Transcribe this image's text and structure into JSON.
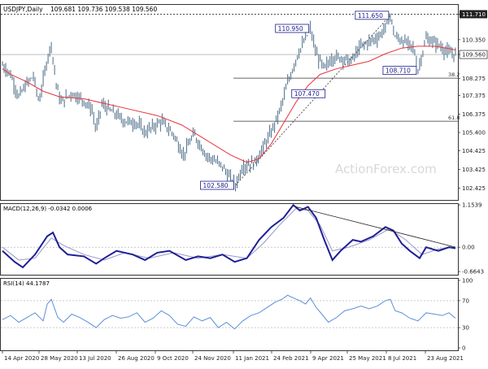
{
  "chart_data": [
    {
      "type": "candlestick",
      "panel": "price",
      "title": "USDJPY,Daily",
      "ohlc_label": "109.681 109.736 109.538 109.560",
      "ylim": [
        101.8,
        112.25
      ],
      "y_ticks": [
        "111.710",
        "110.350",
        "109.560",
        "108.275",
        "107.375",
        "106.375",
        "105.400",
        "104.425",
        "103.425",
        "102.425"
      ],
      "current_price": "109.560",
      "last_value_box_color": "#ffffff",
      "bar_color": "#4a6b86",
      "moving_average_color": "#e8323c",
      "series": [
        {
          "name": "price",
          "points": [
            [
              0,
              109.0
            ],
            [
              10,
              108.5
            ],
            [
              20,
              107.3
            ],
            [
              30,
              108.0
            ],
            [
              38,
              108.4
            ],
            [
              45,
              107.0
            ],
            [
              55,
              109.3
            ],
            [
              60,
              110.1
            ],
            [
              66,
              108.0
            ],
            [
              72,
              107.0
            ],
            [
              85,
              107.5
            ],
            [
              100,
              107.1
            ],
            [
              110,
              106.6
            ],
            [
              115,
              105.5
            ],
            [
              122,
              106.9
            ],
            [
              135,
              106.5
            ],
            [
              150,
              106.0
            ],
            [
              165,
              105.9
            ],
            [
              175,
              105.4
            ],
            [
              195,
              106.0
            ],
            [
              210,
              105.3
            ],
            [
              222,
              104.2
            ],
            [
              235,
              105.3
            ],
            [
              250,
              104.2
            ],
            [
              270,
              103.6
            ],
            [
              280,
              102.9
            ],
            [
              286,
              102.58
            ],
            [
              295,
              103.6
            ],
            [
              310,
              103.8
            ],
            [
              330,
              105.4
            ],
            [
              340,
              106.5
            ],
            [
              350,
              108.0
            ],
            [
              362,
              109.5
            ],
            [
              372,
              110.4
            ],
            [
              378,
              110.95
            ],
            [
              385,
              109.6
            ],
            [
              395,
              108.8
            ],
            [
              405,
              109.4
            ],
            [
              415,
              109.4
            ],
            [
              428,
              109.2
            ],
            [
              440,
              110.0
            ],
            [
              452,
              110.3
            ],
            [
              462,
              110.5
            ],
            [
              470,
              111.0
            ],
            [
              476,
              111.65
            ],
            [
              482,
              110.5
            ],
            [
              495,
              110.2
            ],
            [
              505,
              109.9
            ],
            [
              510,
              108.71
            ],
            [
              520,
              110.4
            ],
            [
              535,
              110.1
            ],
            [
              545,
              109.7
            ],
            [
              556,
              109.56
            ]
          ]
        },
        {
          "name": "moving_average",
          "points": [
            [
              0,
              108.8
            ],
            [
              10,
              108.5
            ],
            [
              30,
              108.1
            ],
            [
              50,
              107.6
            ],
            [
              70,
              107.3
            ],
            [
              100,
              107.2
            ],
            [
              130,
              106.9
            ],
            [
              160,
              106.6
            ],
            [
              190,
              106.3
            ],
            [
              220,
              105.8
            ],
            [
              250,
              105.0
            ],
            [
              280,
              104.2
            ],
            [
              300,
              103.8
            ],
            [
              315,
              104.0
            ],
            [
              330,
              104.8
            ],
            [
              345,
              105.9
            ],
            [
              360,
              107.0
            ],
            [
              375,
              107.9
            ],
            [
              390,
              108.5
            ],
            [
              410,
              108.8
            ],
            [
              430,
              109.0
            ],
            [
              450,
              109.2
            ],
            [
              470,
              109.6
            ],
            [
              490,
              109.9
            ],
            [
              510,
              110.0
            ],
            [
              530,
              110.0
            ],
            [
              545,
              109.9
            ],
            [
              556,
              109.8
            ]
          ]
        }
      ],
      "annotations": [
        {
          "text": "111.650",
          "x": 476,
          "y": 111.65,
          "side": "left"
        },
        {
          "text": "110.950",
          "x": 378,
          "y": 110.95,
          "side": "left"
        },
        {
          "text": "108.710",
          "x": 510,
          "y": 108.71,
          "side": "left"
        },
        {
          "text": "107.470",
          "x": 398,
          "y": 107.47,
          "side": "left"
        },
        {
          "text": "102.580",
          "x": 286,
          "y": 102.58,
          "side": "left"
        }
      ],
      "fib_levels": [
        {
          "label": "38.2",
          "value": 108.3
        },
        {
          "label": "61.8",
          "value": 106.0
        }
      ],
      "watermark": "ActionForex.com"
    },
    {
      "type": "line",
      "panel": "macd",
      "label": "MACD(12,26,9) -0.0342 0.0006",
      "y_ticks": [
        "1.1539",
        "0.00",
        "-0.6643"
      ],
      "ylim": [
        -0.75,
        1.2
      ],
      "series": [
        {
          "name": "macd",
          "color": "#1e1e96",
          "points": [
            [
              0,
              -0.1
            ],
            [
              15,
              -0.4
            ],
            [
              25,
              -0.55
            ],
            [
              40,
              -0.2
            ],
            [
              55,
              0.3
            ],
            [
              62,
              0.4
            ],
            [
              70,
              0.0
            ],
            [
              80,
              -0.2
            ],
            [
              100,
              -0.25
            ],
            [
              115,
              -0.45
            ],
            [
              125,
              -0.3
            ],
            [
              140,
              -0.1
            ],
            [
              160,
              -0.2
            ],
            [
              175,
              -0.35
            ],
            [
              190,
              -0.15
            ],
            [
              205,
              -0.1
            ],
            [
              225,
              -0.35
            ],
            [
              240,
              -0.25
            ],
            [
              255,
              -0.3
            ],
            [
              270,
              -0.2
            ],
            [
              285,
              -0.4
            ],
            [
              300,
              -0.3
            ],
            [
              315,
              0.2
            ],
            [
              330,
              0.55
            ],
            [
              345,
              0.8
            ],
            [
              357,
              1.15
            ],
            [
              365,
              1.0
            ],
            [
              375,
              1.1
            ],
            [
              385,
              0.8
            ],
            [
              395,
              0.2
            ],
            [
              405,
              -0.35
            ],
            [
              415,
              -0.1
            ],
            [
              430,
              0.2
            ],
            [
              440,
              0.15
            ],
            [
              455,
              0.3
            ],
            [
              470,
              0.55
            ],
            [
              480,
              0.45
            ],
            [
              490,
              0.1
            ],
            [
              500,
              -0.1
            ],
            [
              512,
              -0.3
            ],
            [
              520,
              0.0
            ],
            [
              535,
              -0.1
            ],
            [
              548,
              0.0
            ],
            [
              556,
              -0.03
            ]
          ]
        },
        {
          "name": "signal",
          "color": "#9696c8",
          "points": [
            [
              0,
              0.0
            ],
            [
              20,
              -0.35
            ],
            [
              40,
              -0.3
            ],
            [
              60,
              0.25
            ],
            [
              75,
              0.05
            ],
            [
              100,
              -0.2
            ],
            [
              125,
              -0.35
            ],
            [
              150,
              -0.15
            ],
            [
              180,
              -0.3
            ],
            [
              210,
              -0.15
            ],
            [
              240,
              -0.3
            ],
            [
              270,
              -0.2
            ],
            [
              300,
              -0.3
            ],
            [
              320,
              0.1
            ],
            [
              340,
              0.6
            ],
            [
              360,
              1.05
            ],
            [
              375,
              1.0
            ],
            [
              390,
              0.6
            ],
            [
              405,
              -0.1
            ],
            [
              425,
              0.0
            ],
            [
              450,
              0.2
            ],
            [
              475,
              0.5
            ],
            [
              495,
              0.2
            ],
            [
              515,
              -0.2
            ],
            [
              535,
              -0.05
            ],
            [
              556,
              0.0
            ]
          ]
        }
      ],
      "trendline": [
        [
          357,
          1.12
        ],
        [
          556,
          0.0
        ]
      ]
    },
    {
      "type": "line",
      "panel": "rsi",
      "label": "RSI(14) 44.1787",
      "y_ticks": [
        "100",
        "70",
        "30",
        "0"
      ],
      "ylim": [
        0,
        100
      ],
      "series": [
        {
          "name": "rsi",
          "color": "#5b8fd9",
          "points": [
            [
              0,
              42
            ],
            [
              10,
              48
            ],
            [
              20,
              38
            ],
            [
              30,
              45
            ],
            [
              40,
              52
            ],
            [
              50,
              40
            ],
            [
              55,
              65
            ],
            [
              60,
              72
            ],
            [
              68,
              45
            ],
            [
              75,
              38
            ],
            [
              85,
              50
            ],
            [
              95,
              45
            ],
            [
              105,
              38
            ],
            [
              115,
              30
            ],
            [
              125,
              42
            ],
            [
              135,
              48
            ],
            [
              145,
              44
            ],
            [
              155,
              46
            ],
            [
              165,
              52
            ],
            [
              175,
              38
            ],
            [
              185,
              44
            ],
            [
              195,
              55
            ],
            [
              205,
              48
            ],
            [
              215,
              35
            ],
            [
              225,
              32
            ],
            [
              235,
              46
            ],
            [
              245,
              40
            ],
            [
              255,
              45
            ],
            [
              265,
              30
            ],
            [
              275,
              38
            ],
            [
              285,
              28
            ],
            [
              295,
              40
            ],
            [
              305,
              48
            ],
            [
              315,
              52
            ],
            [
              325,
              60
            ],
            [
              335,
              68
            ],
            [
              343,
              72
            ],
            [
              350,
              78
            ],
            [
              357,
              74
            ],
            [
              365,
              70
            ],
            [
              372,
              65
            ],
            [
              378,
              74
            ],
            [
              385,
              60
            ],
            [
              392,
              50
            ],
            [
              400,
              38
            ],
            [
              410,
              45
            ],
            [
              420,
              55
            ],
            [
              430,
              58
            ],
            [
              440,
              62
            ],
            [
              450,
              58
            ],
            [
              460,
              62
            ],
            [
              470,
              70
            ],
            [
              476,
              72
            ],
            [
              482,
              55
            ],
            [
              490,
              52
            ],
            [
              500,
              44
            ],
            [
              510,
              40
            ],
            [
              520,
              52
            ],
            [
              530,
              50
            ],
            [
              540,
              48
            ],
            [
              548,
              52
            ],
            [
              556,
              44
            ]
          ]
        }
      ]
    }
  ],
  "x_axis": {
    "labels": [
      "14 Apr 2020",
      "28 May 2020",
      "13 Jul 2020",
      "26 Aug 2020",
      "9 Oct 2020",
      "24 Nov 2020",
      "11 Jan 2021",
      "24 Feb 2021",
      "9 Apr 2021",
      "25 May 2021",
      "8 Jul 2021",
      "23 Aug 2021"
    ],
    "positions": [
      2,
      47,
      94,
      142,
      190,
      236,
      286,
      333,
      381,
      426,
      474,
      522
    ]
  }
}
